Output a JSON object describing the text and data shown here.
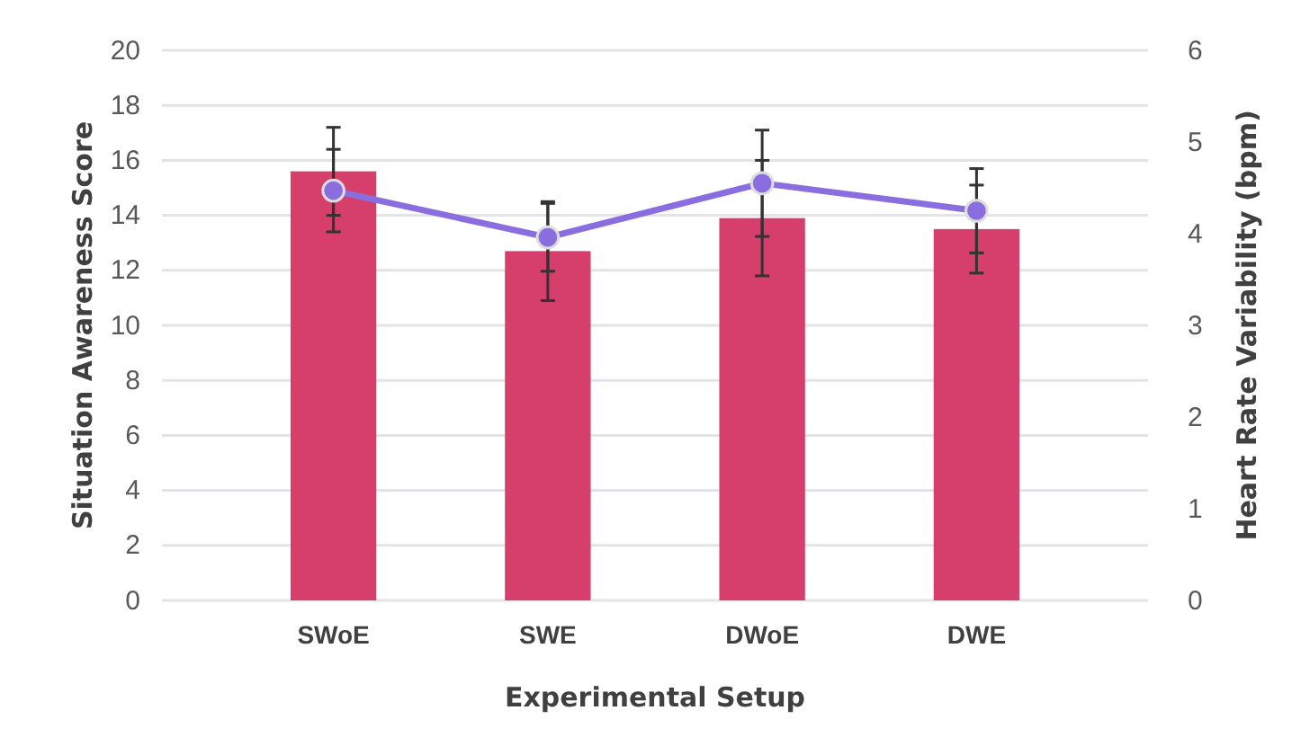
{
  "chart_data": {
    "type": "bar",
    "categories": [
      "SWoE",
      "SWE",
      "DWoE",
      "DWE"
    ],
    "xlabel": "Experimental Setup",
    "ylabel": "Situation Awareness Score",
    "y2label": "Heart Rate Variability (bpm)",
    "series": [
      {
        "color": "#d63e6c",
        "values": [
          15.6,
          12.7,
          13.9,
          13.5
        ],
        "errors": [
          1.6,
          1.8,
          2.1,
          1.6
        ]
      },
      {
        "type": "line",
        "axis": "y2",
        "color": "#8a6ee0",
        "values": [
          4.47,
          3.96,
          4.55,
          4.25
        ],
        "errors": [
          0.45,
          0.37,
          0.58,
          0.46
        ]
      }
    ],
    "ylim": [
      0,
      20
    ],
    "yticks": [
      0,
      2,
      4,
      6,
      8,
      10,
      12,
      14,
      16,
      18,
      20
    ],
    "y2lim": [
      0,
      6
    ],
    "y2ticks": [
      0,
      1,
      2,
      3,
      4,
      5,
      6
    ],
    "grid": "y",
    "marker": "circle"
  }
}
